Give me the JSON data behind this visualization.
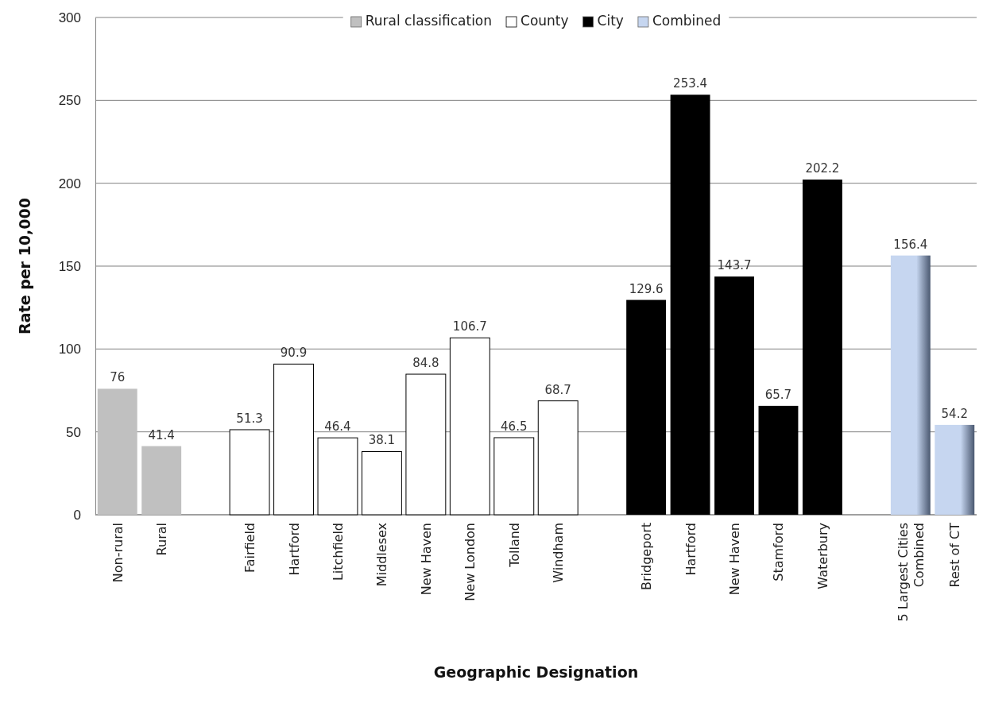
{
  "chart_data": {
    "type": "bar",
    "xlabel": "Geographic Designation",
    "ylabel": "Rate per 10,000",
    "categories": [
      "Non-rural",
      "Rural",
      null,
      "Fairfield",
      "Hartford",
      "Litchfield",
      "Middlesex",
      "New Haven",
      "New London",
      "Tolland",
      "Windham",
      null,
      "Bridgeport",
      "Hartford",
      "New Haven",
      "Stamford",
      "Waterbury",
      null,
      "5 Largest Cities Combined",
      "Rest of CT"
    ],
    "series": [
      {
        "name": "Rural classification",
        "color": "#c0c0c0",
        "values": [
          76,
          41.4,
          null,
          null,
          null,
          null,
          null,
          null,
          null,
          null,
          null,
          null,
          null,
          null,
          null,
          null,
          null,
          null,
          null,
          null
        ]
      },
      {
        "name": "County",
        "color": "#ffffff",
        "values": [
          null,
          null,
          null,
          51.3,
          90.9,
          46.4,
          38.1,
          84.8,
          106.7,
          46.5,
          68.7,
          null,
          null,
          null,
          null,
          null,
          null,
          null,
          null,
          null
        ]
      },
      {
        "name": "City",
        "color": "#000000",
        "values": [
          null,
          null,
          null,
          null,
          null,
          null,
          null,
          null,
          null,
          null,
          null,
          null,
          129.6,
          253.4,
          143.7,
          65.7,
          202.2,
          null,
          null,
          null
        ]
      },
      {
        "name": "Combined",
        "color": "#c6d6f0",
        "values": [
          null,
          null,
          null,
          null,
          null,
          null,
          null,
          null,
          null,
          null,
          null,
          null,
          null,
          null,
          null,
          null,
          null,
          null,
          156.4,
          54.2
        ]
      }
    ],
    "ylim": [
      0,
      300
    ],
    "yticks": [
      0,
      50,
      100,
      150,
      200,
      250,
      300
    ],
    "grid": "y",
    "legend": "top",
    "data_labels": true
  }
}
